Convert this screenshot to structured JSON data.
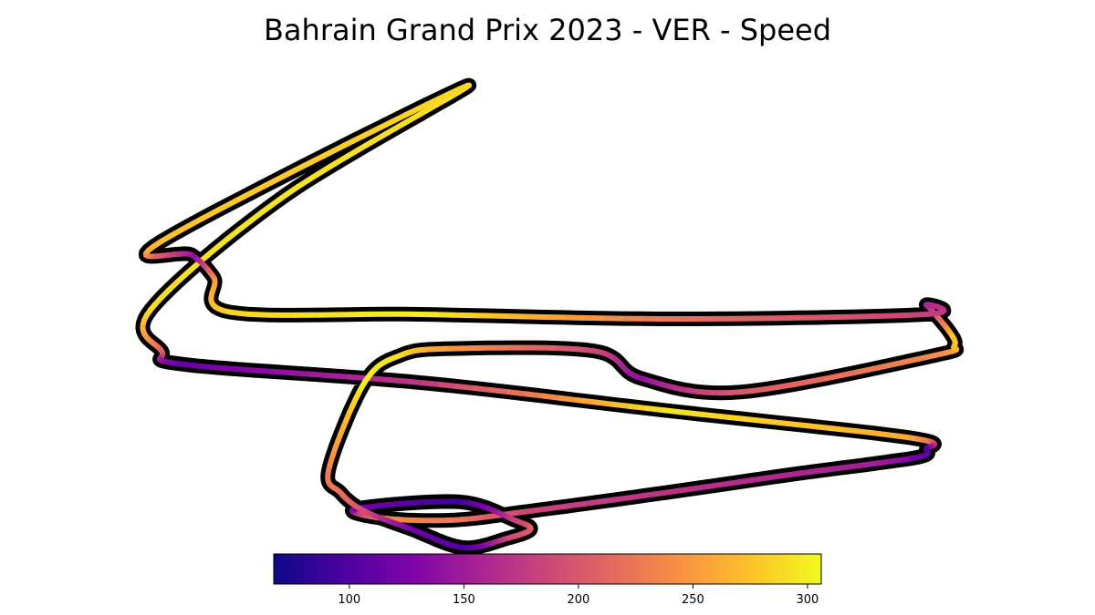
{
  "chart_data": {
    "type": "line",
    "title": "Bahrain Grand Prix 2023 - VER - Speed",
    "colormap": "plasma",
    "colorbar": {
      "min": 67,
      "max": 306,
      "ticks": [
        100,
        150,
        200,
        250,
        300
      ],
      "tick_labels": [
        "100",
        "150",
        "200",
        "250",
        "300"
      ],
      "placement": "bottom"
    },
    "x": [
      400,
      170,
      0,
      14,
      45,
      345,
      650,
      960,
      980,
      975,
      920,
      810,
      650,
      480,
      380,
      290,
      260,
      390,
      460,
      480,
      450,
      395,
      330,
      270,
      240,
      225,
      270,
      315,
      380,
      560,
      620,
      745,
      990,
      1015,
      1010,
      980,
      980,
      665,
      340,
      100,
      80,
      52,
      14
    ],
    "y": [
      2370,
      2130,
      1880,
      1790,
      1760,
      1720,
      1660,
      1600,
      1575,
      1560,
      1545,
      1520,
      1480,
      1440,
      1420,
      1425,
      1445,
      1460,
      1420,
      1400,
      1380,
      1360,
      1400,
      1440,
      1480,
      1530,
      1720,
      1780,
      1795,
      1790,
      1730,
      1700,
      1780,
      1800,
      1830,
      1890,
      1870,
      1860,
      1870,
      1875,
      1950,
      2000,
      2030
    ],
    "speed": [
      288,
      295,
      290,
      214,
      110,
      175,
      294,
      259,
      99,
      108,
      150,
      160,
      170,
      185,
      225,
      240,
      125,
      90,
      180,
      210,
      190,
      100,
      120,
      190,
      220,
      228,
      300,
      292,
      250,
      187,
      140,
      200,
      240,
      275,
      275,
      157,
      180,
      220,
      300,
      285,
      250,
      135,
      275
    ]
  }
}
